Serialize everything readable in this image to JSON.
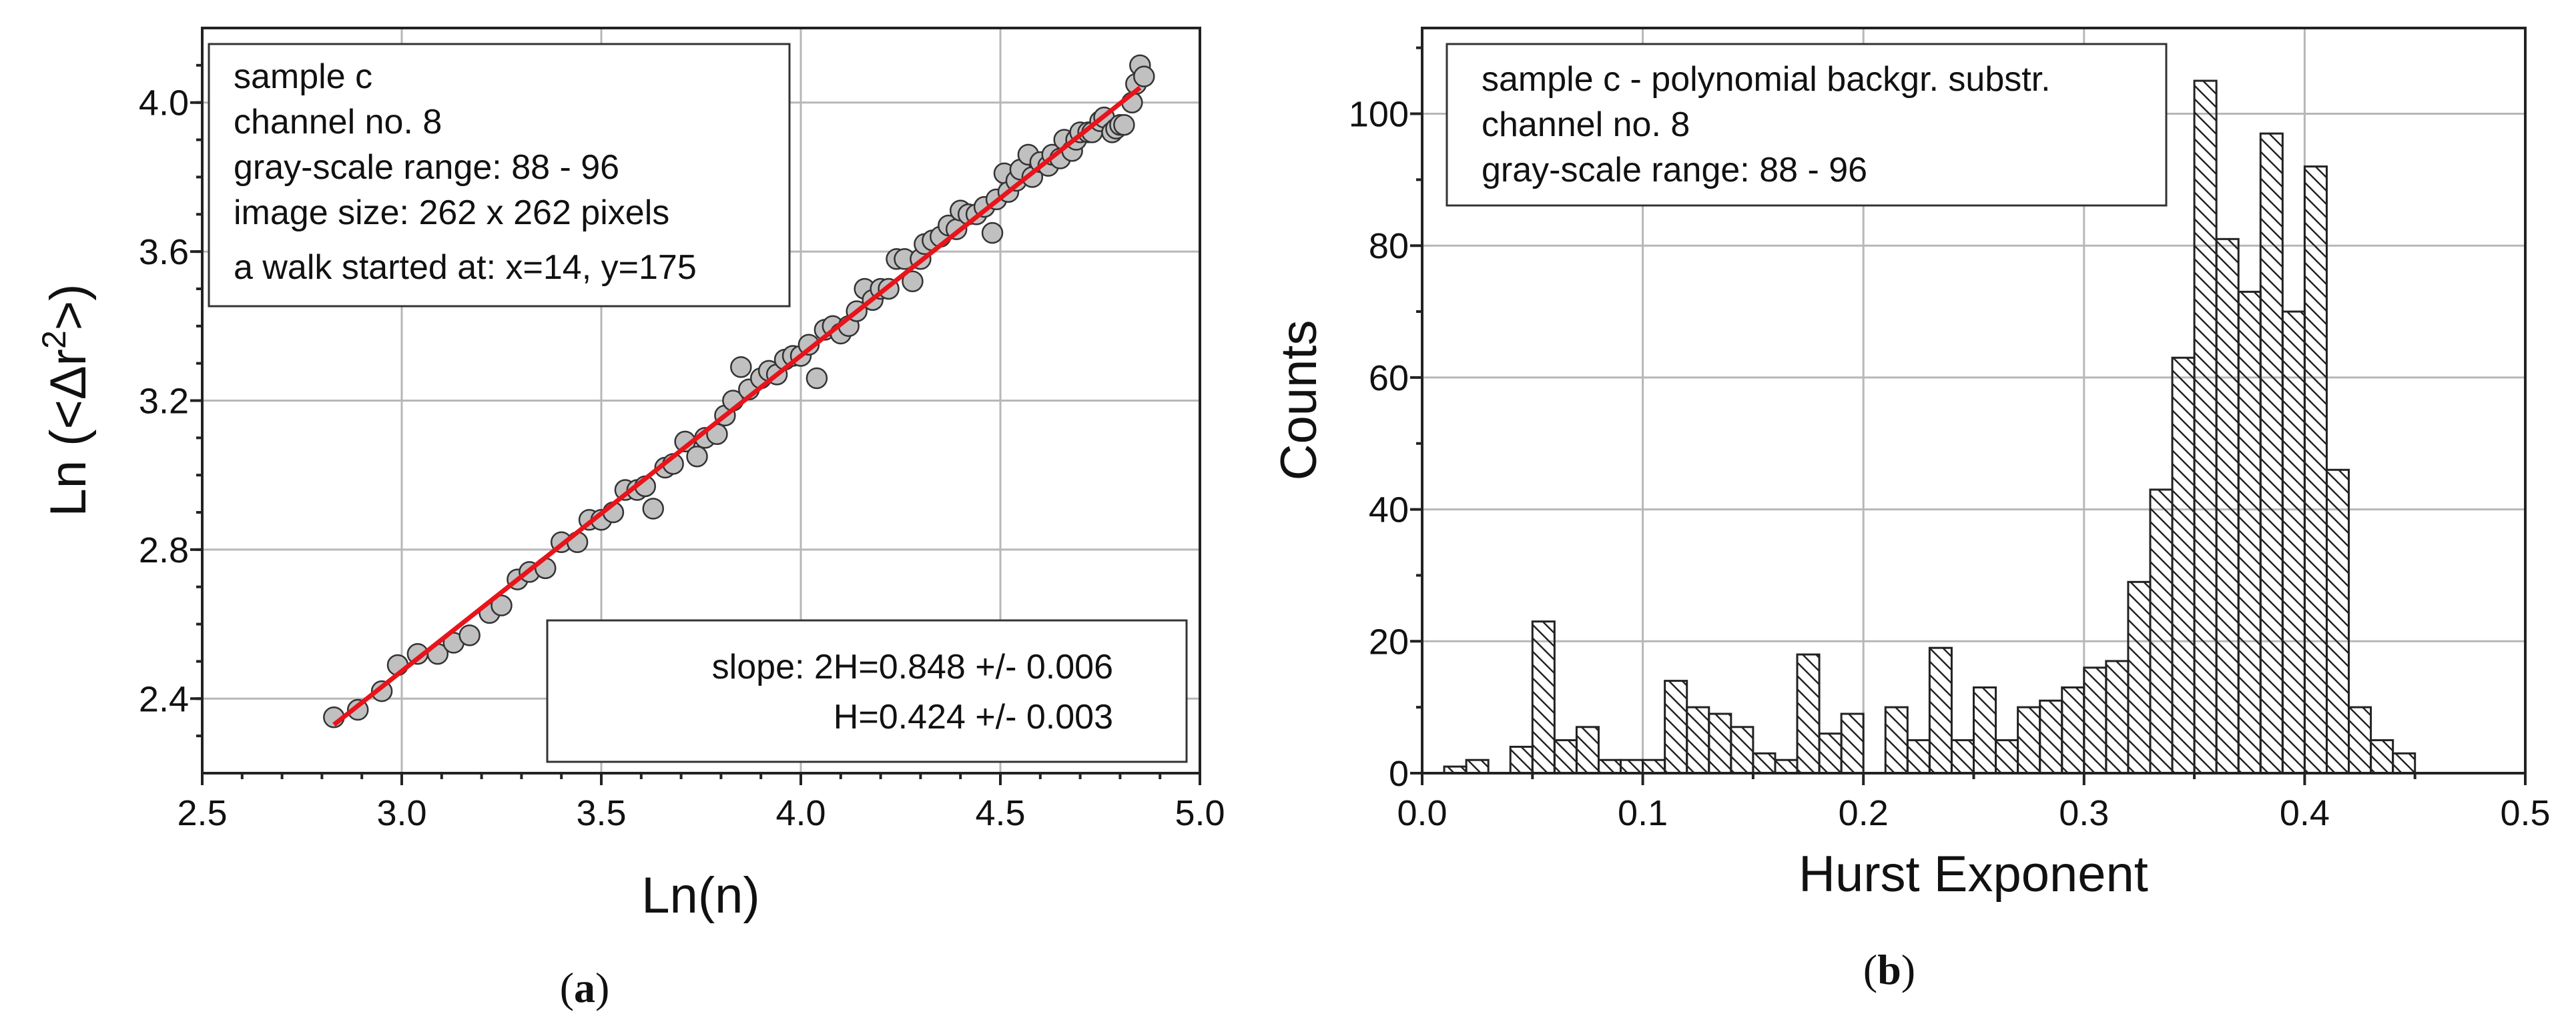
{
  "chart_data": [
    {
      "id": "a",
      "type": "scatter",
      "panel_label": "a",
      "xlabel": "Ln(n)",
      "ylabel_base": "Ln (<Δr",
      "ylabel_sup": "2",
      "ylabel_tail": ">)",
      "xlim": [
        2.5,
        5.0
      ],
      "ylim": [
        2.2,
        4.2
      ],
      "xticks": [
        "2.5",
        "3.0",
        "3.5",
        "4.0",
        "4.5",
        "5.0"
      ],
      "yticks": [
        "2.4",
        "2.8",
        "3.2",
        "3.6",
        "4.0"
      ],
      "info_lines": [
        "sample c",
        "channel no. 8",
        "gray-scale range: 88 - 96",
        "image size: 262 x 262 pixels",
        "a walk started at: x=14, y=175"
      ],
      "slope_lines": [
        "slope: 2H=0.848 +/- 0.006",
        "H=0.424 +/- 0.003"
      ],
      "fit_line": {
        "x": [
          2.83,
          4.85
        ],
        "y": [
          2.33,
          4.04
        ],
        "color": "#e8141b"
      },
      "marker_color": "#c0c0c0",
      "points_x": [
        2.83,
        2.89,
        2.95,
        2.99,
        3.04,
        3.09,
        3.13,
        3.17,
        3.22,
        3.25,
        3.29,
        3.32,
        3.36,
        3.4,
        3.44,
        3.47,
        3.5,
        3.53,
        3.56,
        3.59,
        3.61,
        3.63,
        3.66,
        3.68,
        3.71,
        3.74,
        3.76,
        3.79,
        3.81,
        3.83,
        3.85,
        3.87,
        3.9,
        3.92,
        3.94,
        3.96,
        3.98,
        4.0,
        4.02,
        4.04,
        4.06,
        4.08,
        4.1,
        4.12,
        4.14,
        4.16,
        4.18,
        4.2,
        4.22,
        4.24,
        4.26,
        4.28,
        4.3,
        4.31,
        4.33,
        4.35,
        4.37,
        4.39,
        4.4,
        4.42,
        4.44,
        4.46,
        4.48,
        4.49,
        4.51,
        4.52,
        4.54,
        4.55,
        4.57,
        4.58,
        4.6,
        4.62,
        4.63,
        4.65,
        4.66,
        4.68,
        4.69,
        4.7,
        4.72,
        4.73,
        4.75,
        4.76,
        4.78,
        4.79,
        4.8,
        4.81,
        4.83,
        4.84,
        4.85,
        4.86
      ],
      "points_y": [
        2.35,
        2.37,
        2.42,
        2.49,
        2.52,
        2.52,
        2.55,
        2.57,
        2.63,
        2.65,
        2.72,
        2.74,
        2.75,
        2.82,
        2.82,
        2.88,
        2.88,
        2.9,
        2.96,
        2.96,
        2.97,
        2.91,
        3.02,
        3.03,
        3.09,
        3.05,
        3.1,
        3.11,
        3.16,
        3.2,
        3.29,
        3.23,
        3.26,
        3.28,
        3.27,
        3.31,
        3.32,
        3.32,
        3.35,
        3.26,
        3.39,
        3.4,
        3.38,
        3.4,
        3.44,
        3.5,
        3.47,
        3.5,
        3.5,
        3.58,
        3.58,
        3.52,
        3.58,
        3.62,
        3.63,
        3.64,
        3.67,
        3.66,
        3.71,
        3.7,
        3.7,
        3.72,
        3.65,
        3.74,
        3.81,
        3.76,
        3.79,
        3.82,
        3.86,
        3.8,
        3.84,
        3.83,
        3.86,
        3.85,
        3.9,
        3.87,
        3.9,
        3.92,
        3.92,
        3.92,
        3.95,
        3.96,
        3.92,
        3.93,
        3.94,
        3.94,
        4.0,
        4.05,
        4.1,
        4.07
      ]
    },
    {
      "id": "b",
      "type": "bar",
      "panel_label": "b",
      "xlabel": "Hurst Exponent",
      "ylabel": "Counts",
      "xlim": [
        0.0,
        0.5
      ],
      "ylim": [
        0,
        113
      ],
      "xticks": [
        "0.0",
        "0.1",
        "0.2",
        "0.3",
        "0.4",
        "0.5"
      ],
      "yticks": [
        "0",
        "20",
        "40",
        "60",
        "80",
        "100"
      ],
      "info_lines": [
        "sample c - polynomial backgr. substr.",
        "channel no. 8",
        "gray-scale range: 88 - 96"
      ],
      "bin_start": 0.0,
      "bin_width": 0.01,
      "values": [
        0,
        1,
        2,
        0,
        4,
        23,
        5,
        7,
        2,
        2,
        2,
        14,
        10,
        9,
        7,
        3,
        2,
        18,
        6,
        9,
        0,
        10,
        5,
        19,
        5,
        13,
        5,
        10,
        11,
        13,
        16,
        17,
        29,
        43,
        63,
        105,
        81,
        73,
        97,
        70,
        92,
        46,
        10,
        5,
        3
      ]
    }
  ]
}
